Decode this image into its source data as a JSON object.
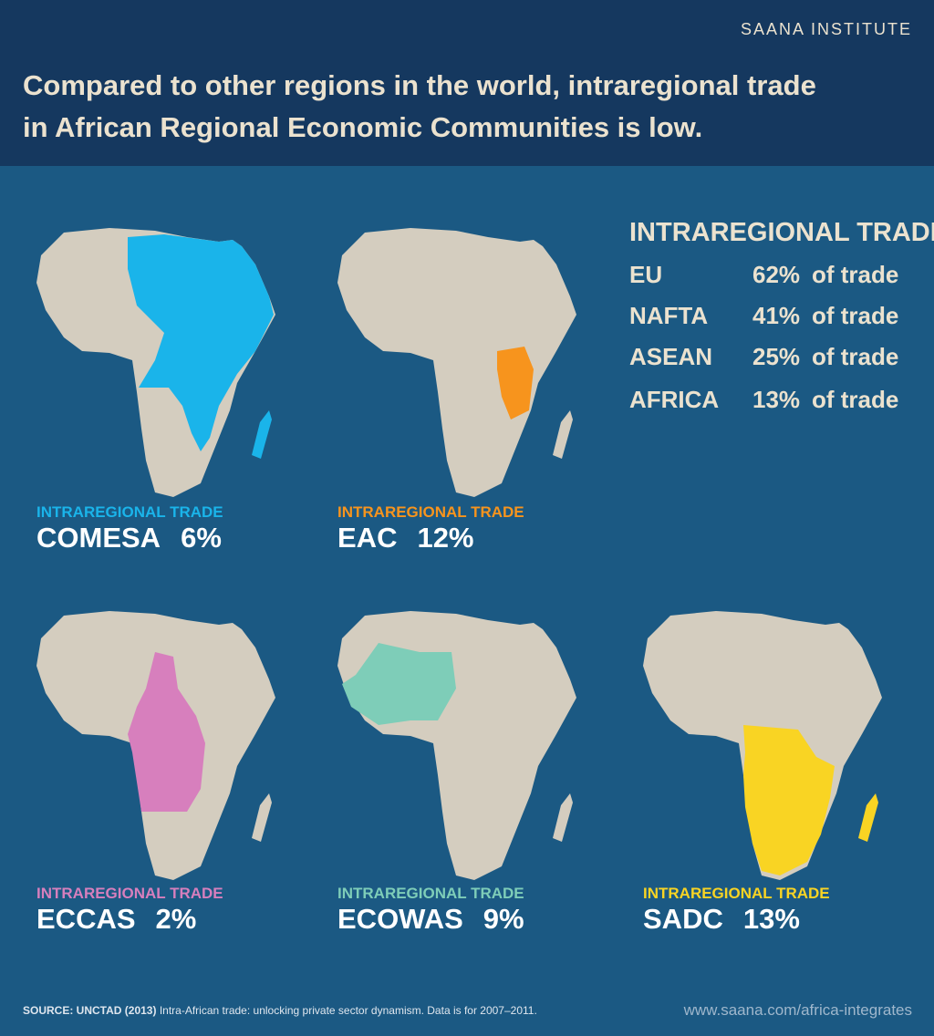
{
  "header": {
    "brand": "SAANA INSTITUTE",
    "title": [
      "Compared to other regions in the world, intraregional trade",
      "in African Regional Economic Communities is low."
    ]
  },
  "table": {
    "heading": "INTRAREGIONAL TRADE",
    "rows": [
      [
        "EU",
        "62%",
        "of trade"
      ],
      [
        "NAFTA",
        "41%",
        "of trade"
      ],
      [
        "ASEAN",
        "25%",
        "of trade"
      ],
      [
        "AFRICA",
        "13%",
        "of trade"
      ]
    ]
  },
  "maps": [
    {
      "label": "INTRAREGIONAL TRADE",
      "name": "COMESA",
      "value": "6%",
      "color": "#1ab4ea"
    },
    {
      "label": "INTRAREGIONAL TRADE",
      "name": "EAC",
      "value": "12%",
      "color": "#f7941d"
    },
    {
      "label": "INTRAREGIONAL TRADE",
      "name": "ECCAS",
      "value": "2%",
      "color": "#d77fbd"
    },
    {
      "label": "INTRAREGIONAL TRADE",
      "name": "ECOWAS",
      "value": "9%",
      "color": "#7ecdb8"
    },
    {
      "label": "INTRAREGIONAL TRADE",
      "name": "SADC",
      "value": "13%",
      "color": "#f9d423"
    }
  ],
  "footer": {
    "source_label": "SOURCE: UNCTAD (2013)",
    "source_text": "Intra-African trade: unlocking private sector dynamism. Data is for 2007–2011.",
    "url": "www.saana.com/africa-integrates"
  }
}
